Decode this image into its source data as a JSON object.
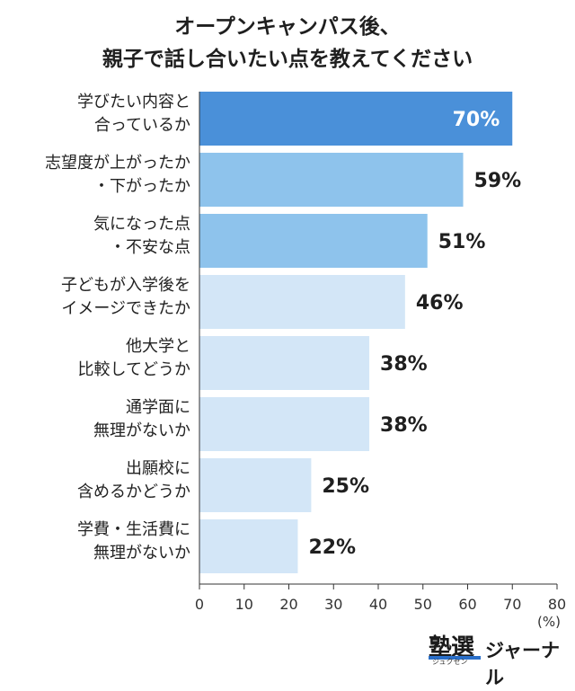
{
  "chart_data": {
    "type": "bar",
    "orientation": "horizontal",
    "title_line1": "オープンキャンパス後、",
    "title_line2": "親子で話し合いたい点を教えてください",
    "unit": "(%)",
    "categories": [
      [
        "学びたい内容と",
        "合っているか"
      ],
      [
        "志望度が上がったか",
        "・下がったか"
      ],
      [
        "気になった点",
        "・不安な点"
      ],
      [
        "子どもが入学後を",
        "イメージできたか"
      ],
      [
        "他大学と",
        "比較してどうか"
      ],
      [
        "通学面に",
        "無理がないか"
      ],
      [
        "出願校に",
        "含めるかどうか"
      ],
      [
        "学費・生活費に",
        "無理がないか"
      ]
    ],
    "values": [
      70,
      59,
      51,
      46,
      38,
      38,
      25,
      22
    ],
    "value_labels": [
      "70%",
      "59%",
      "51%",
      "46%",
      "38%",
      "38%",
      "25%",
      "22%"
    ],
    "colors": [
      "#4a90d9",
      "#8ec3ec",
      "#8ec3ec",
      "#d3e6f7",
      "#d3e6f7",
      "#d3e6f7",
      "#d3e6f7",
      "#d3e6f7"
    ],
    "xlim": [
      0,
      80
    ],
    "xticks": [
      0,
      10,
      20,
      30,
      40,
      50,
      60,
      70,
      80
    ],
    "grid": false
  },
  "logo": {
    "kanji": "塾選",
    "kana": "ジュクセン",
    "text": "ジャーナル",
    "accent": "#2a6fc9"
  }
}
